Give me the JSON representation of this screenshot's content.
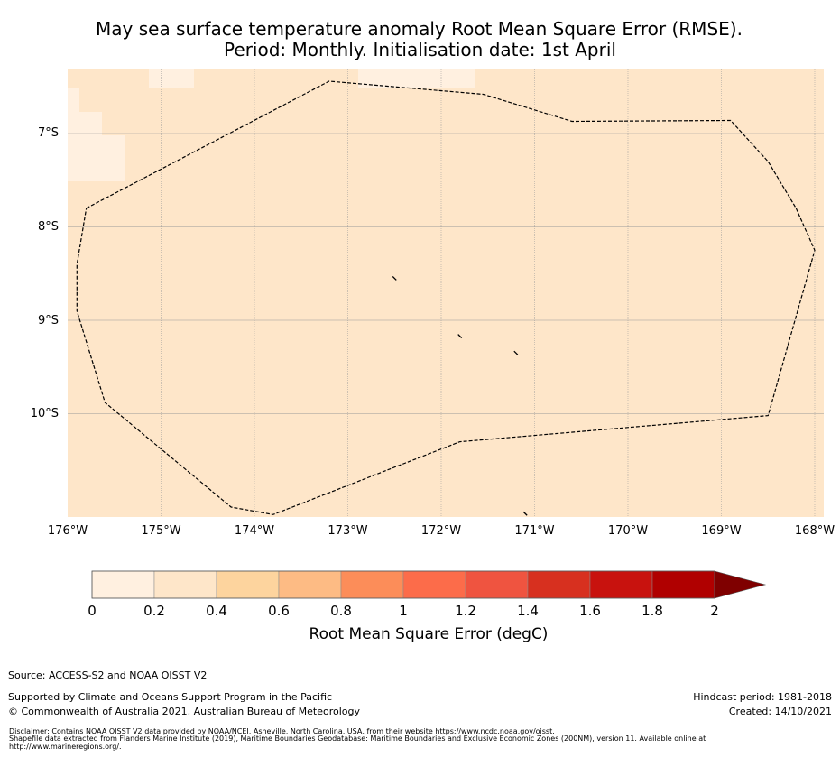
{
  "title": {
    "line1": "May sea surface temperature anomaly Root Mean Square Error (RMSE).",
    "line2": "Period: Monthly. Initialisation date: 1st April"
  },
  "map": {
    "background_color": "#fee6c9",
    "pale_cells_color": "#fff0e0",
    "lat_labels": [
      "7°S",
      "8°S",
      "9°S",
      "10°S"
    ],
    "lon_labels": [
      "176°W",
      "175°W",
      "174°W",
      "173°W",
      "172°W",
      "171°W",
      "170°W",
      "169°W",
      "168°W"
    ],
    "lat_range": [
      -11.1,
      -6.3
    ],
    "lon_range": [
      -176,
      -168
    ],
    "eez_boundary": [
      [
        -175.8,
        -7.8
      ],
      [
        -173.2,
        -6.44
      ],
      [
        -171.55,
        -6.58
      ],
      [
        -170.6,
        -6.87
      ],
      [
        -168.9,
        -6.86
      ],
      [
        -168.5,
        -7.3
      ],
      [
        -168.2,
        -7.8
      ],
      [
        -168.0,
        -8.25
      ],
      [
        -168.5,
        -10.02
      ],
      [
        -171.8,
        -10.3
      ],
      [
        -173.8,
        -11.08
      ],
      [
        -174.25,
        -11.0
      ],
      [
        -175.6,
        -9.88
      ],
      [
        -175.9,
        -8.9
      ],
      [
        -175.9,
        -8.4
      ],
      [
        -175.8,
        -7.8
      ]
    ],
    "islands": [
      {
        "name": "island-1",
        "lon": -172.5,
        "lat": -8.55
      },
      {
        "name": "island-2",
        "lon": -171.8,
        "lat": -9.17
      },
      {
        "name": "island-3",
        "lon": -171.2,
        "lat": -9.35
      },
      {
        "name": "island-4",
        "lon": -171.1,
        "lat": -11.07
      }
    ]
  },
  "colorbar": {
    "ticks": [
      "0",
      "0.2",
      "0.4",
      "0.6",
      "0.8",
      "1",
      "1.2",
      "1.4",
      "1.6",
      "1.8",
      "2"
    ],
    "bins": [
      0,
      0.2,
      0.4,
      0.6,
      0.8,
      1.0,
      1.2,
      1.4,
      1.6,
      1.8,
      2.0
    ],
    "colors": [
      "#fff0e0",
      "#fee6c9",
      "#fdd49e",
      "#fdbb84",
      "#fc8d59",
      "#fc6c4a",
      "#ef5440",
      "#d7301f",
      "#c8120e",
      "#b00000",
      "#7f0000"
    ],
    "extend": "max",
    "label": "Root Mean Square Error (degC)"
  },
  "footer": {
    "source": "Source: ACCESS-S2 and NOAA OISST V2",
    "supported": "Supported by Climate and Oceans Support Program in the Pacific",
    "copyright": "© Commonwealth of Australia 2021, Australian Bureau of Meteorology",
    "hindcast": "Hindcast period: 1981-2018",
    "created": "Created: 14/10/2021",
    "disclaimer1": "Disclaimer: Contains NOAA OISST V2 data provided by NOAA/NCEI, Asheville, North Carolina, USA, from their website https://www.ncdc.noaa.gov/oisst.",
    "disclaimer2": "Shapefile data extracted from Flanders Marine Institute (2019), Maritime Boundaries Geodatabase: Maritime Boundaries and Exclusive Economic Zones (200NM), version 11. Available online at",
    "disclaimer3": "http://www.marineregions.org/."
  }
}
